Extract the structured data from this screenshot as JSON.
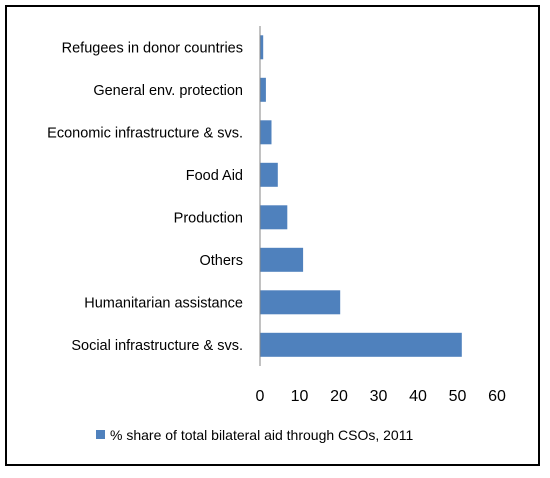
{
  "chart_data": {
    "type": "bar",
    "orientation": "horizontal",
    "categories": [
      "Refugees in donor countries",
      "General env. protection",
      "Economic infrastructure & svs.",
      "Food Aid",
      "Production",
      "Others",
      "Humanitarian assistance",
      "Social infrastructure & svs."
    ],
    "series": [
      {
        "name": "% share of total bilateral aid through CSOs, 2011",
        "values": [
          0.8,
          1.5,
          2.9,
          4.5,
          6.9,
          10.9,
          20.3,
          51.1
        ],
        "color": "#4F81BD"
      }
    ],
    "xlim": [
      0,
      60
    ],
    "xticks": [
      0,
      10,
      20,
      30,
      40,
      50,
      60
    ],
    "grid": false,
    "legend_position": "bottom",
    "title": "",
    "xlabel": "",
    "ylabel": ""
  }
}
